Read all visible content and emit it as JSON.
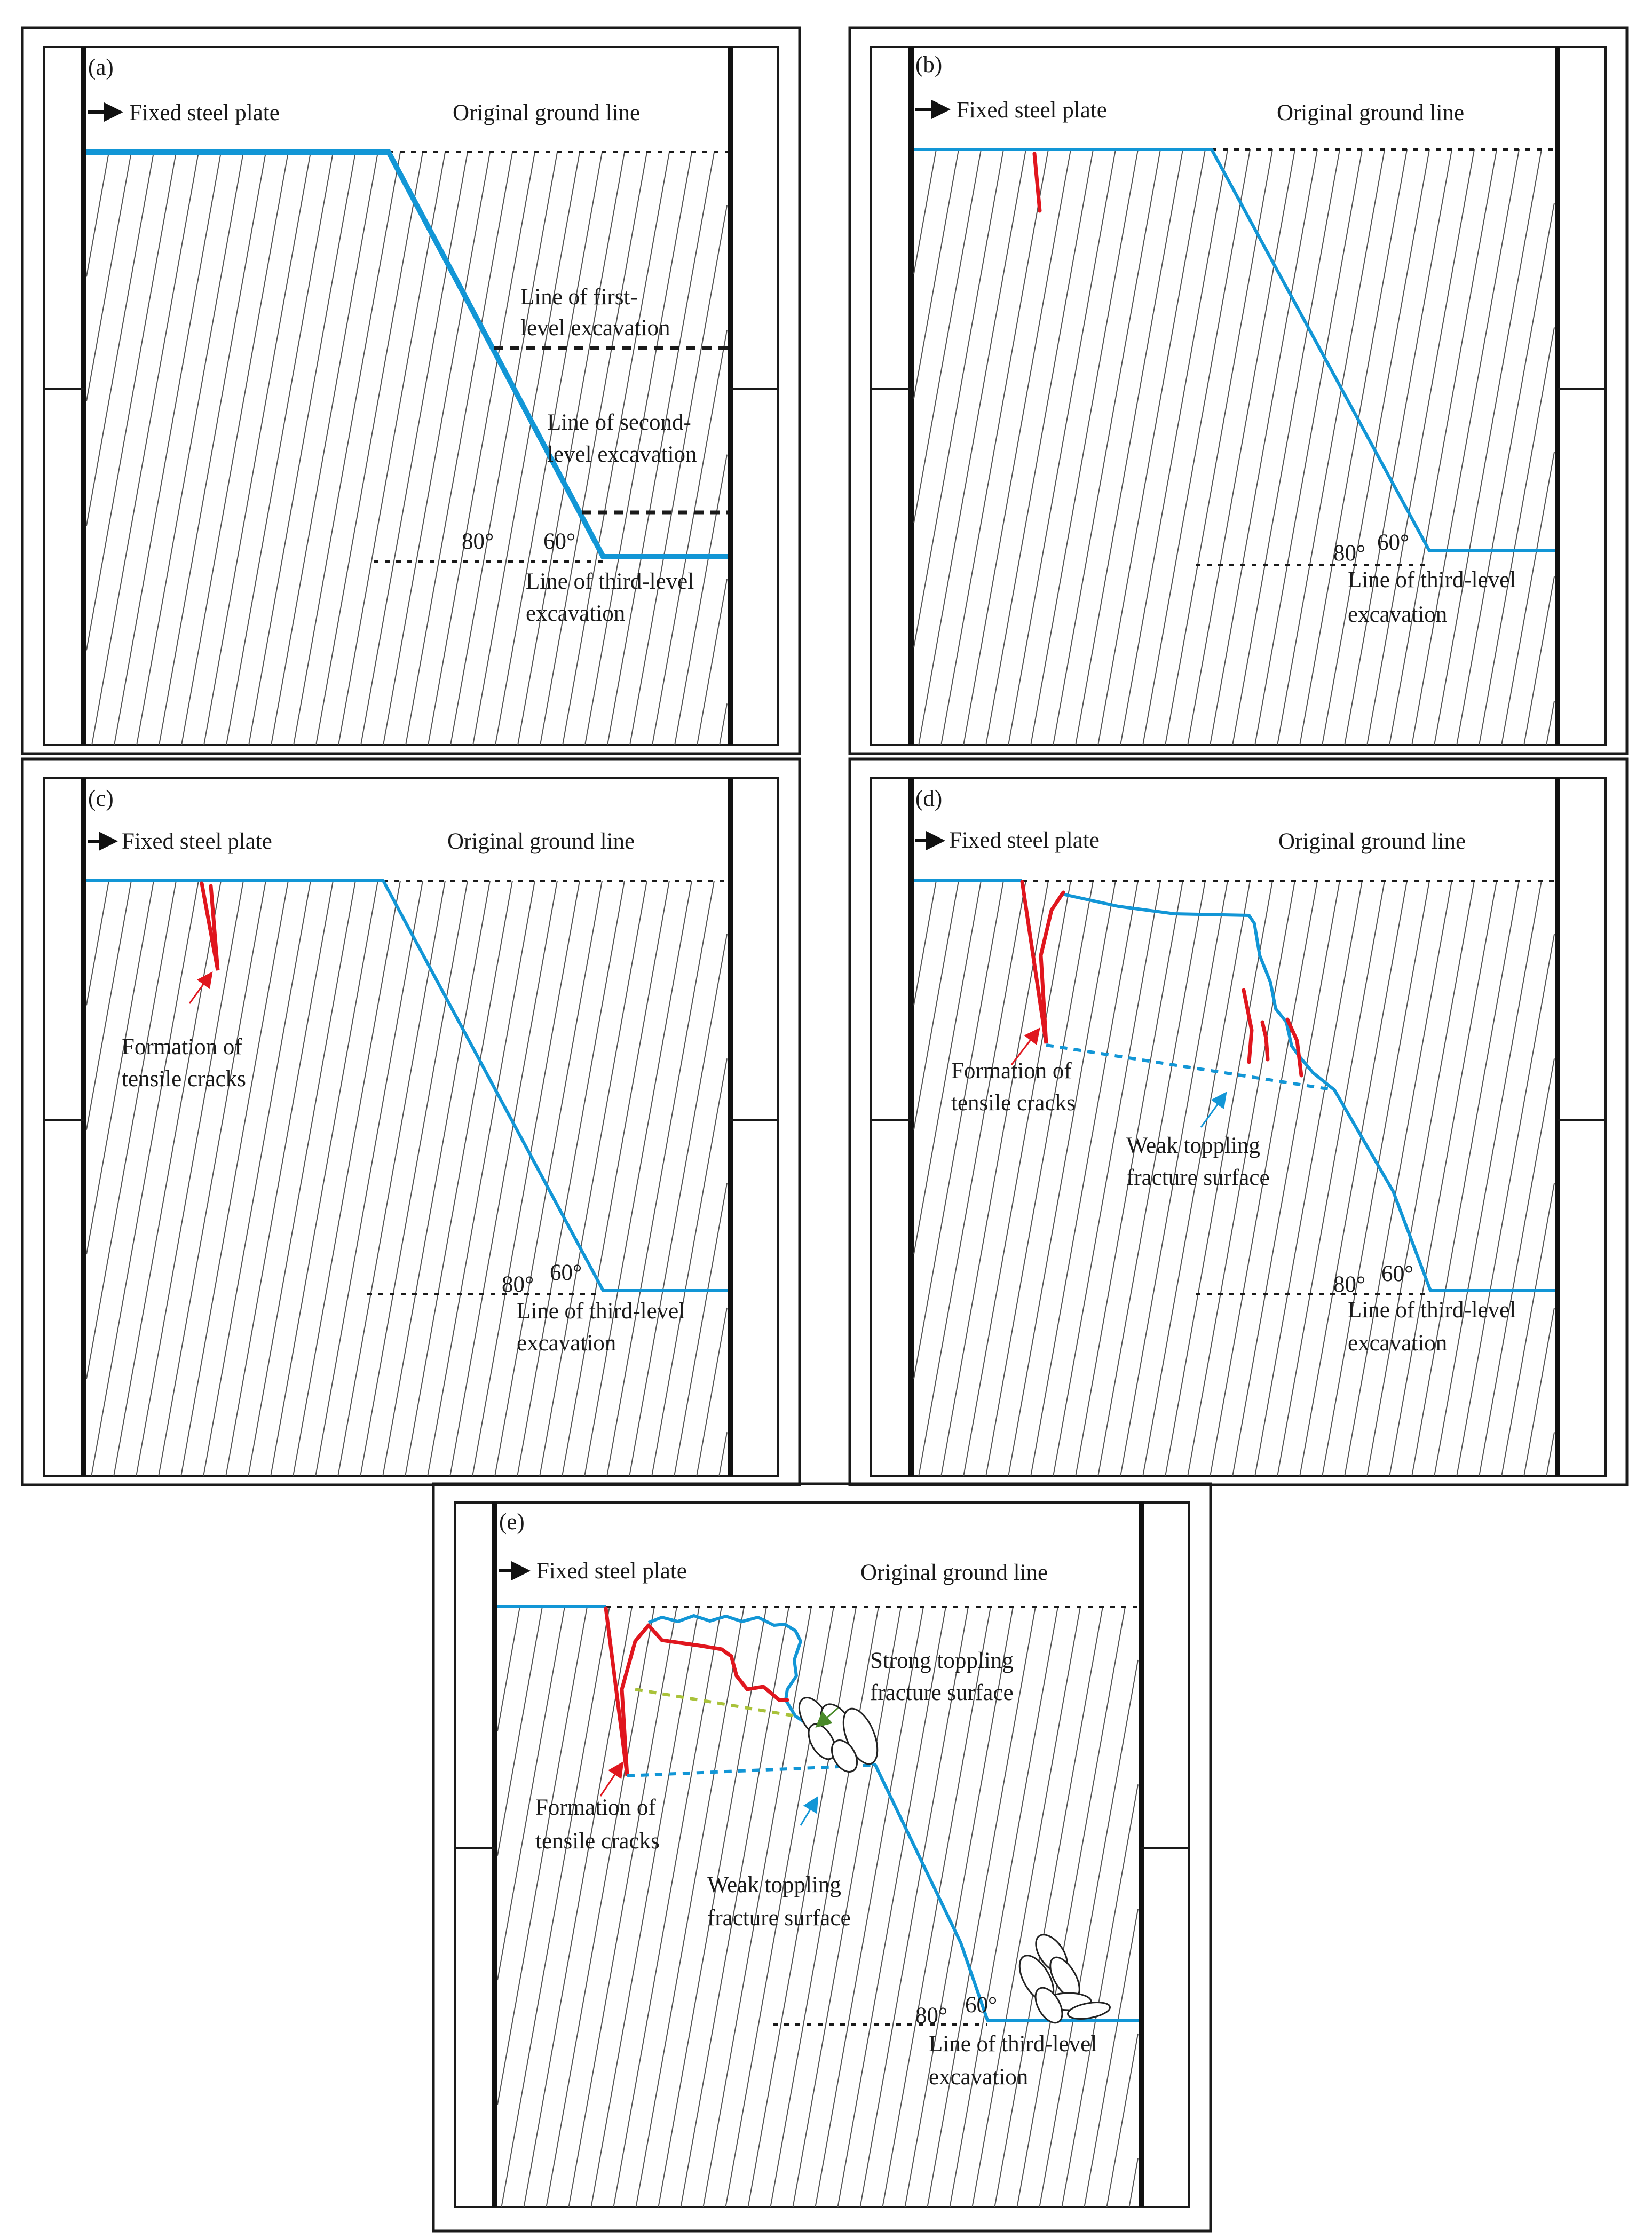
{
  "figure": {
    "panels": [
      {
        "id": "a",
        "label": "(a)",
        "fixed_plate": "Fixed steel plate",
        "ground_line": "Original ground line",
        "first_level": [
          "Line of first-",
          "level excavation"
        ],
        "second_level": [
          "Line of second-",
          "level excavation"
        ],
        "third_level": [
          "Line of third-level",
          "excavation"
        ],
        "angle_joint": "80°",
        "angle_slope": "60°"
      },
      {
        "id": "b",
        "label": "(b)",
        "fixed_plate": "Fixed steel plate",
        "ground_line": "Original ground line",
        "third_level": [
          "Line of third-level",
          "excavation"
        ],
        "angle_joint": "80°",
        "angle_slope": "60°"
      },
      {
        "id": "c",
        "label": "(c)",
        "fixed_plate": "Fixed steel plate",
        "ground_line": "Original ground line",
        "tensile_cracks": [
          "Formation of",
          "tensile cracks"
        ],
        "third_level": [
          "Line of third-level",
          "excavation"
        ],
        "angle_joint": "80°",
        "angle_slope": "60°"
      },
      {
        "id": "d",
        "label": "(d)",
        "fixed_plate": "Fixed steel plate",
        "ground_line": "Original ground line",
        "tensile_cracks": [
          "Formation of",
          "tensile cracks"
        ],
        "weak_surface": [
          "Weak toppling",
          "fracture surface"
        ],
        "third_level": [
          "Line of third-level",
          "excavation"
        ],
        "angle_joint": "80°",
        "angle_slope": "60°"
      },
      {
        "id": "e",
        "label": "(e)",
        "fixed_plate": "Fixed steel plate",
        "ground_line": "Original ground line",
        "strong_surface": [
          "Strong toppling",
          "fracture surface"
        ],
        "tensile_cracks": [
          "Formation of",
          "tensile cracks"
        ],
        "weak_surface": [
          "Weak toppling",
          "fracture surface"
        ],
        "third_level": [
          "Line of third-level",
          "excavation"
        ],
        "angle_joint": "80°",
        "angle_slope": "60°"
      }
    ],
    "colors": {
      "slope_surface": "#1296d6",
      "tensile_crack": "#e0161e",
      "strong_fracture": "#a9c23a",
      "outline": "#1a1a1a"
    }
  }
}
